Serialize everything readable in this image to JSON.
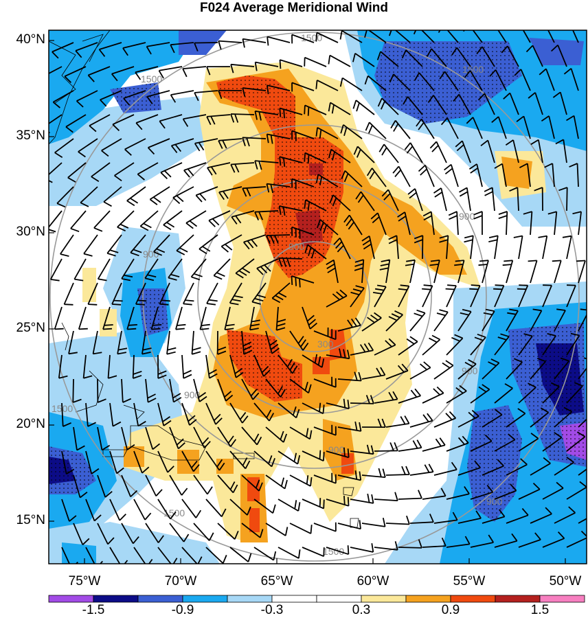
{
  "title": "F024 Average Meridional Wind",
  "lat_labels": [
    "40°N",
    "35°N",
    "30°N",
    "25°N",
    "20°N",
    "15°N"
  ],
  "lon_labels": [
    "75°W",
    "70°W",
    "65°W",
    "60°W",
    "55°W",
    "50°W"
  ],
  "contour_labels": [
    "1500",
    "1500",
    "1500",
    "1500",
    "1500",
    "1500",
    "900",
    "900",
    "900",
    "900",
    "900",
    "900",
    "900",
    "300"
  ],
  "colorbar": {
    "colors": [
      "#a24be6",
      "#0c0c87",
      "#3b5fd3",
      "#1aa9f0",
      "#a7d8f6",
      "#ffffff",
      "#ffffff",
      "#fbe89a",
      "#f5a21f",
      "#f04a0f",
      "#b4201e",
      "#f77fc0"
    ],
    "labels": [
      "-1.5",
      "-0.9",
      "-0.3",
      "0.3",
      "0.9",
      "1.5"
    ]
  },
  "background_color": "#ffffff"
}
